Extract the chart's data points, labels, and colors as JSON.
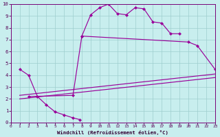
{
  "bg_color": "#c8eeee",
  "line_color": "#990099",
  "grid_color": "#9ecece",
  "xlabel": "Windchill (Refroidissement éolien,°C)",
  "ylim": [
    0,
    10
  ],
  "xlim": [
    0,
    23
  ],
  "yticks": [
    0,
    1,
    2,
    3,
    4,
    5,
    6,
    7,
    8,
    9,
    10
  ],
  "xticks": [
    0,
    1,
    2,
    3,
    4,
    5,
    6,
    7,
    8,
    9,
    10,
    11,
    12,
    13,
    14,
    15,
    16,
    17,
    18,
    19,
    20,
    21,
    22,
    23
  ],
  "curve1_x": [
    1,
    2,
    3,
    4,
    5,
    6,
    7,
    7.8
  ],
  "curve1_y": [
    4.5,
    4.0,
    2.2,
    1.5,
    0.9,
    0.65,
    0.4,
    0.25
  ],
  "curve2_x": [
    8,
    9,
    10,
    11,
    12,
    13,
    14,
    15,
    16,
    17,
    18,
    19
  ],
  "curve2_y": [
    7.3,
    9.1,
    9.7,
    10.0,
    9.2,
    9.1,
    9.7,
    9.6,
    8.5,
    8.4,
    7.5,
    7.5
  ],
  "curve3_x": [
    2,
    7,
    8,
    20,
    21,
    23
  ],
  "curve3_y": [
    2.2,
    2.3,
    7.3,
    6.8,
    6.5,
    4.5
  ],
  "line4_x": [
    1,
    23
  ],
  "line4_y": [
    2.3,
    4.1
  ],
  "line5_x": [
    1,
    23
  ],
  "line5_y": [
    2.0,
    3.8
  ]
}
